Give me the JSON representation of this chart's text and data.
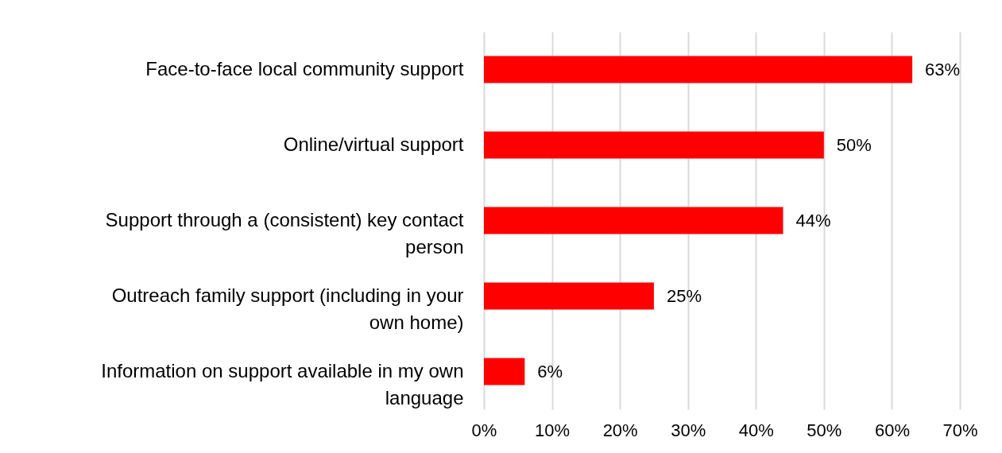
{
  "chart_data": {
    "type": "bar",
    "orientation": "horizontal",
    "categories": [
      "Face-to-face local community support",
      "Online/virtual support",
      "Support through a (consistent) key contact person",
      "Outreach family support (including in your own home)",
      "Information on support available in my own language"
    ],
    "values": [
      63,
      50,
      44,
      25,
      6
    ],
    "value_labels": [
      "63%",
      "50%",
      "44%",
      "25%",
      "6%"
    ],
    "color": "#ff0000",
    "xlim": [
      0,
      70
    ],
    "xticks": [
      {
        "value": 0,
        "label": "0%"
      },
      {
        "value": 10,
        "label": "10%"
      },
      {
        "value": 20,
        "label": "20%"
      },
      {
        "value": 30,
        "label": "30%"
      },
      {
        "value": 40,
        "label": "40%"
      },
      {
        "value": 50,
        "label": "50%"
      },
      {
        "value": 60,
        "label": "60%"
      },
      {
        "value": 70,
        "label": "70%"
      }
    ],
    "grid": "x"
  }
}
